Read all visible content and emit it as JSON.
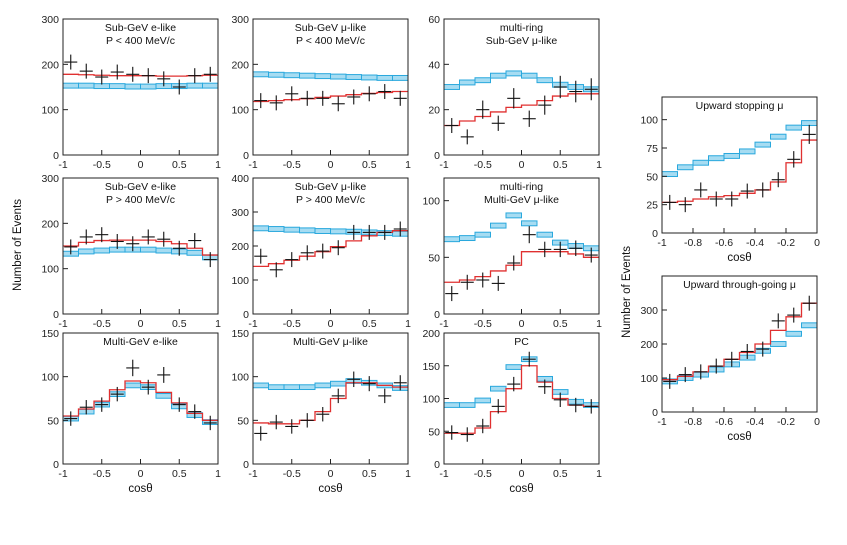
{
  "figure": {
    "ylabel_left": "Number of Events",
    "ylabel_right": "Number of Events",
    "xlabel": "cosθ",
    "colors": {
      "data": "#111111",
      "best_fit": "#e03030",
      "no_osc": "#29a8dd",
      "no_osc_fill": "#a6dcf2",
      "frame": "#222222"
    }
  },
  "chart_data": [
    {
      "id": "p1",
      "type": "histogram",
      "title": "Sub-GeV e-like",
      "title2": "P < 400 MeV/c",
      "xlim": [
        -1,
        1
      ],
      "ylim": [
        0,
        300
      ],
      "xticks": [
        -1,
        -0.5,
        0,
        0.5,
        1
      ],
      "xtick_labels": [
        "-1",
        "-0.5",
        "0",
        "0.5",
        "1"
      ],
      "yticks": [
        0,
        100,
        200,
        300
      ],
      "ytick_labels": [
        "0",
        "100",
        "200",
        "300"
      ],
      "x": [
        -0.9,
        -0.7,
        -0.5,
        -0.3,
        -0.1,
        0.1,
        0.3,
        0.5,
        0.7,
        0.9
      ],
      "data": [
        205,
        185,
        172,
        183,
        178,
        175,
        168,
        150,
        175,
        178
      ],
      "best_fit": [
        178,
        177,
        176,
        175,
        175,
        175,
        174,
        174,
        175,
        176
      ],
      "no_osc": [
        153,
        153,
        152,
        152,
        151,
        151,
        152,
        152,
        153,
        153
      ]
    },
    {
      "id": "p2",
      "type": "histogram",
      "title": "Sub-GeV μ-like",
      "title2": "P < 400 MeV/c",
      "xlim": [
        -1,
        1
      ],
      "ylim": [
        0,
        300
      ],
      "xticks": [
        -1,
        -0.5,
        0,
        0.5,
        1
      ],
      "xtick_labels": [
        "-1",
        "-0.5",
        "0",
        "0.5",
        "1"
      ],
      "yticks": [
        0,
        100,
        200,
        300
      ],
      "ytick_labels": [
        "0",
        "100",
        "200",
        "300"
      ],
      "x": [
        -0.9,
        -0.7,
        -0.5,
        -0.3,
        -0.1,
        0.1,
        0.3,
        0.5,
        0.7,
        0.9
      ],
      "data": [
        120,
        115,
        135,
        125,
        125,
        113,
        128,
        135,
        140,
        125
      ],
      "best_fit": [
        118,
        120,
        122,
        124,
        127,
        130,
        133,
        136,
        138,
        140
      ],
      "no_osc": [
        178,
        177,
        176,
        175,
        174,
        173,
        172,
        171,
        170,
        170
      ]
    },
    {
      "id": "p3",
      "type": "histogram",
      "title": "multi-ring",
      "title2": "Sub-GeV μ-like",
      "xlim": [
        -1,
        1
      ],
      "ylim": [
        0,
        60
      ],
      "xticks": [
        -1,
        -0.5,
        0,
        0.5,
        1
      ],
      "xtick_labels": [
        "-1",
        "-0.5",
        "0",
        "0.5",
        "1"
      ],
      "yticks": [
        0,
        20,
        40,
        60
      ],
      "ytick_labels": [
        "0",
        "20",
        "40",
        "60"
      ],
      "x": [
        -0.9,
        -0.7,
        -0.5,
        -0.3,
        -0.1,
        0.1,
        0.3,
        0.5,
        0.7,
        0.9
      ],
      "data": [
        13,
        8,
        20,
        14,
        25,
        16,
        22,
        30,
        28,
        29
      ],
      "best_fit": [
        13,
        15,
        17,
        19,
        21,
        22,
        24,
        26,
        27,
        27
      ],
      "no_osc": [
        30,
        32,
        33,
        35,
        36,
        35,
        33,
        31,
        30,
        29
      ]
    },
    {
      "id": "p4",
      "type": "histogram",
      "title": "Sub-GeV e-like",
      "title2": "P > 400 MeV/c",
      "xlim": [
        -1,
        1
      ],
      "ylim": [
        0,
        300
      ],
      "xticks": [
        -1,
        -0.5,
        0,
        0.5,
        1
      ],
      "xtick_labels": [
        "-1",
        "-0.5",
        "0",
        "0.5",
        "1"
      ],
      "yticks": [
        0,
        100,
        200,
        300
      ],
      "ytick_labels": [
        "0",
        "100",
        "200",
        "300"
      ],
      "x": [
        -0.9,
        -0.7,
        -0.5,
        -0.3,
        -0.1,
        0.1,
        0.3,
        0.5,
        0.7,
        0.9
      ],
      "data": [
        148,
        170,
        175,
        160,
        155,
        170,
        165,
        145,
        162,
        120
      ],
      "best_fit": [
        150,
        158,
        162,
        163,
        163,
        163,
        160,
        155,
        145,
        130
      ],
      "no_osc": [
        133,
        138,
        140,
        142,
        142,
        142,
        140,
        138,
        135,
        125
      ]
    },
    {
      "id": "p5",
      "type": "histogram",
      "title": "Sub-GeV μ-like",
      "title2": "P > 400 MeV/c",
      "xlim": [
        -1,
        1
      ],
      "ylim": [
        0,
        400
      ],
      "xticks": [
        -1,
        -0.5,
        0,
        0.5,
        1
      ],
      "xtick_labels": [
        "-1",
        "-0.5",
        "0",
        "0.5",
        "1"
      ],
      "yticks": [
        0,
        100,
        200,
        300,
        400
      ],
      "ytick_labels": [
        "0",
        "100",
        "200",
        "300",
        "400"
      ],
      "x": [
        -0.9,
        -0.7,
        -0.5,
        -0.3,
        -0.1,
        0.1,
        0.3,
        0.5,
        0.7,
        0.9
      ],
      "data": [
        170,
        130,
        160,
        180,
        185,
        195,
        240,
        240,
        240,
        250
      ],
      "best_fit": [
        140,
        148,
        158,
        170,
        183,
        198,
        215,
        230,
        240,
        245
      ],
      "no_osc": [
        252,
        250,
        248,
        246,
        244,
        243,
        242,
        240,
        238,
        236
      ]
    },
    {
      "id": "p6",
      "type": "histogram",
      "title": "multi-ring",
      "title2": "Multi-GeV μ-like",
      "xlim": [
        -1,
        1
      ],
      "ylim": [
        0,
        120
      ],
      "xticks": [
        -1,
        -0.5,
        0,
        0.5,
        1
      ],
      "xtick_labels": [
        "-1",
        "-0.5",
        "0",
        "0.5",
        "1"
      ],
      "yticks": [
        0,
        50,
        100
      ],
      "ytick_labels": [
        "0",
        "50",
        "100"
      ],
      "x": [
        -0.9,
        -0.7,
        -0.5,
        -0.3,
        -0.1,
        0.1,
        0.3,
        0.5,
        0.7,
        0.9
      ],
      "data": [
        18,
        28,
        30,
        27,
        45,
        70,
        57,
        57,
        58,
        52
      ],
      "best_fit": [
        28,
        30,
        33,
        38,
        43,
        55,
        55,
        55,
        53,
        50
      ],
      "no_osc": [
        66,
        67,
        70,
        78,
        87,
        80,
        70,
        63,
        60,
        58
      ]
    },
    {
      "id": "p7",
      "type": "histogram",
      "title": "Multi-GeV e-like",
      "title2": "",
      "xlim": [
        -1,
        1
      ],
      "ylim": [
        0,
        150
      ],
      "xticks": [
        -1,
        -0.5,
        0,
        0.5,
        1
      ],
      "xtick_labels": [
        "-1",
        "-0.5",
        "0",
        "0.5",
        "1"
      ],
      "yticks": [
        0,
        50,
        100,
        150
      ],
      "ytick_labels": [
        "0",
        "50",
        "100",
        "150"
      ],
      "x": [
        -0.9,
        -0.7,
        -0.5,
        -0.3,
        -0.1,
        0.1,
        0.3,
        0.5,
        0.7,
        0.9
      ],
      "data": [
        52,
        65,
        68,
        80,
        110,
        88,
        102,
        68,
        60,
        47
      ],
      "best_fit": [
        55,
        63,
        72,
        85,
        95,
        93,
        82,
        70,
        58,
        50
      ],
      "no_osc": [
        52,
        60,
        68,
        80,
        90,
        88,
        78,
        66,
        56,
        48
      ]
    },
    {
      "id": "p8",
      "type": "histogram",
      "title": "Multi-GeV μ-like",
      "title2": "",
      "xlim": [
        -1,
        1
      ],
      "ylim": [
        0,
        150
      ],
      "xticks": [
        -1,
        -0.5,
        0,
        0.5,
        1
      ],
      "xtick_labels": [
        "-1",
        "-0.5",
        "0",
        "0.5",
        "1"
      ],
      "yticks": [
        0,
        50,
        100,
        150
      ],
      "ytick_labels": [
        "0",
        "50",
        "100",
        "150"
      ],
      "x": [
        -0.9,
        -0.7,
        -0.5,
        -0.3,
        -0.1,
        0.1,
        0.3,
        0.5,
        0.7,
        0.9
      ],
      "data": [
        35,
        48,
        43,
        50,
        57,
        78,
        97,
        92,
        78,
        93
      ],
      "best_fit": [
        47,
        46,
        46,
        50,
        60,
        75,
        93,
        93,
        90,
        88
      ],
      "no_osc": [
        90,
        88,
        88,
        88,
        90,
        92,
        95,
        93,
        90,
        87
      ]
    },
    {
      "id": "p9",
      "type": "histogram",
      "title": "PC",
      "title2": "",
      "xlim": [
        -1,
        1
      ],
      "ylim": [
        0,
        200
      ],
      "xticks": [
        -1,
        -0.5,
        0,
        0.5,
        1
      ],
      "xtick_labels": [
        "-1",
        "-0.5",
        "0",
        "0.5",
        "1"
      ],
      "yticks": [
        0,
        50,
        100,
        150,
        200
      ],
      "ytick_labels": [
        "0",
        "50",
        "100",
        "150",
        "200"
      ],
      "x": [
        -0.9,
        -0.7,
        -0.5,
        -0.3,
        -0.1,
        0.1,
        0.3,
        0.5,
        0.7,
        0.9
      ],
      "data": [
        48,
        45,
        58,
        88,
        122,
        160,
        118,
        98,
        90,
        88
      ],
      "best_fit": [
        47,
        47,
        55,
        80,
        115,
        150,
        125,
        100,
        90,
        88
      ],
      "no_osc": [
        90,
        90,
        97,
        115,
        148,
        160,
        130,
        110,
        95,
        90
      ]
    },
    {
      "id": "p10",
      "type": "histogram",
      "title": "Upward stopping μ",
      "title2": "",
      "xlim": [
        -1,
        0
      ],
      "ylim": [
        0,
        120
      ],
      "xticks": [
        -1,
        -0.8,
        -0.6,
        -0.4,
        -0.2,
        0
      ],
      "xtick_labels": [
        "-1",
        "-0.8",
        "-0.6",
        "-0.4",
        "-0.2",
        "0"
      ],
      "yticks": [
        0,
        25,
        50,
        75,
        100
      ],
      "ytick_labels": [
        "0",
        "25",
        "50",
        "75",
        "100"
      ],
      "x": [
        -0.95,
        -0.85,
        -0.75,
        -0.65,
        -0.55,
        -0.45,
        -0.35,
        -0.25,
        -0.15,
        -0.05
      ],
      "data": [
        27,
        25,
        38,
        30,
        30,
        37,
        38,
        47,
        65,
        87
      ],
      "best_fit": [
        27,
        28,
        30,
        32,
        33,
        35,
        38,
        45,
        62,
        82
      ],
      "no_osc": [
        52,
        58,
        62,
        66,
        68,
        72,
        78,
        85,
        93,
        97
      ]
    },
    {
      "id": "p11",
      "type": "histogram",
      "title": "Upward through-going μ",
      "title2": "",
      "xlim": [
        -1,
        0
      ],
      "ylim": [
        0,
        400
      ],
      "xticks": [
        -1,
        -0.8,
        -0.6,
        -0.4,
        -0.2,
        0
      ],
      "xtick_labels": [
        "-1",
        "-0.8",
        "-0.6",
        "-0.4",
        "-0.2",
        "0"
      ],
      "yticks": [
        0,
        100,
        200,
        300
      ],
      "ytick_labels": [
        "0",
        "100",
        "200",
        "300"
      ],
      "x": [
        -0.95,
        -0.85,
        -0.75,
        -0.65,
        -0.55,
        -0.45,
        -0.35,
        -0.25,
        -0.15,
        -0.05
      ],
      "data": [
        90,
        110,
        118,
        135,
        155,
        178,
        185,
        268,
        285,
        320
      ],
      "best_fit": [
        95,
        105,
        118,
        135,
        155,
        175,
        200,
        240,
        280,
        320
      ],
      "no_osc": [
        90,
        100,
        110,
        125,
        140,
        160,
        180,
        200,
        230,
        255
      ]
    }
  ]
}
